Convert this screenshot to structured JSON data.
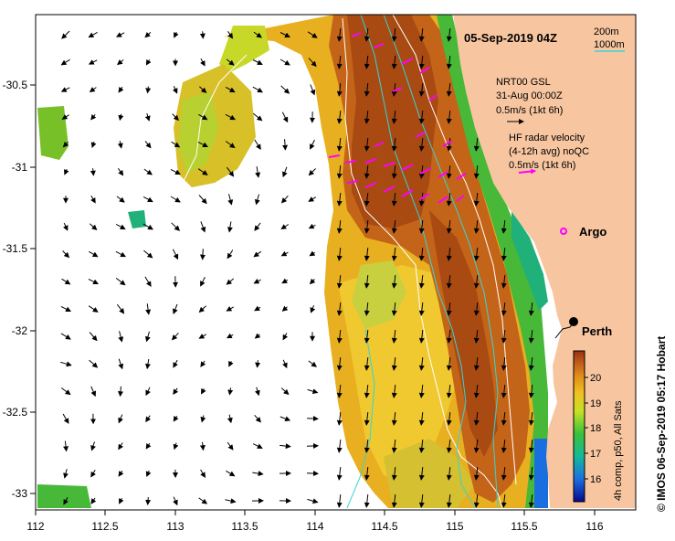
{
  "title": "05-Sep-2019 04Z",
  "isobaths": {
    "label_200": "200m",
    "label_1000": "1000m",
    "color_200": "#ffffff",
    "color_1000": "#33d6d6"
  },
  "model_legend": {
    "name": "NRT00 GSL",
    "date": "31-Aug 00:00Z",
    "scale": "0.5m/s (1kt 6h)"
  },
  "radar_legend": {
    "name": "HF radar velocity",
    "avg": "(4-12h avg) noQC",
    "scale": "0.5m/s (1kt 6h)",
    "color": "#ff00ff"
  },
  "places": {
    "argo": "Argo",
    "perth": "Perth"
  },
  "colorbar": {
    "ticks": [
      "20",
      "19",
      "18",
      "17",
      "16"
    ],
    "caption": "4h comp, p50, All Sats"
  },
  "credit": "© IMOS 06-Sep-2019 05:17 Hobart",
  "axes": {
    "x_ticks": [
      "112",
      "112.5",
      "113",
      "113.5",
      "114",
      "114.5",
      "115",
      "115.5",
      "116"
    ],
    "y_ticks": [
      "-30.5",
      "-31",
      "-31.5",
      "-32",
      "-32.5",
      "-33"
    ]
  },
  "colors": {
    "land": "#f7c6a0",
    "ocean_nodata": "#ffffff",
    "arrow": "#000000"
  }
}
